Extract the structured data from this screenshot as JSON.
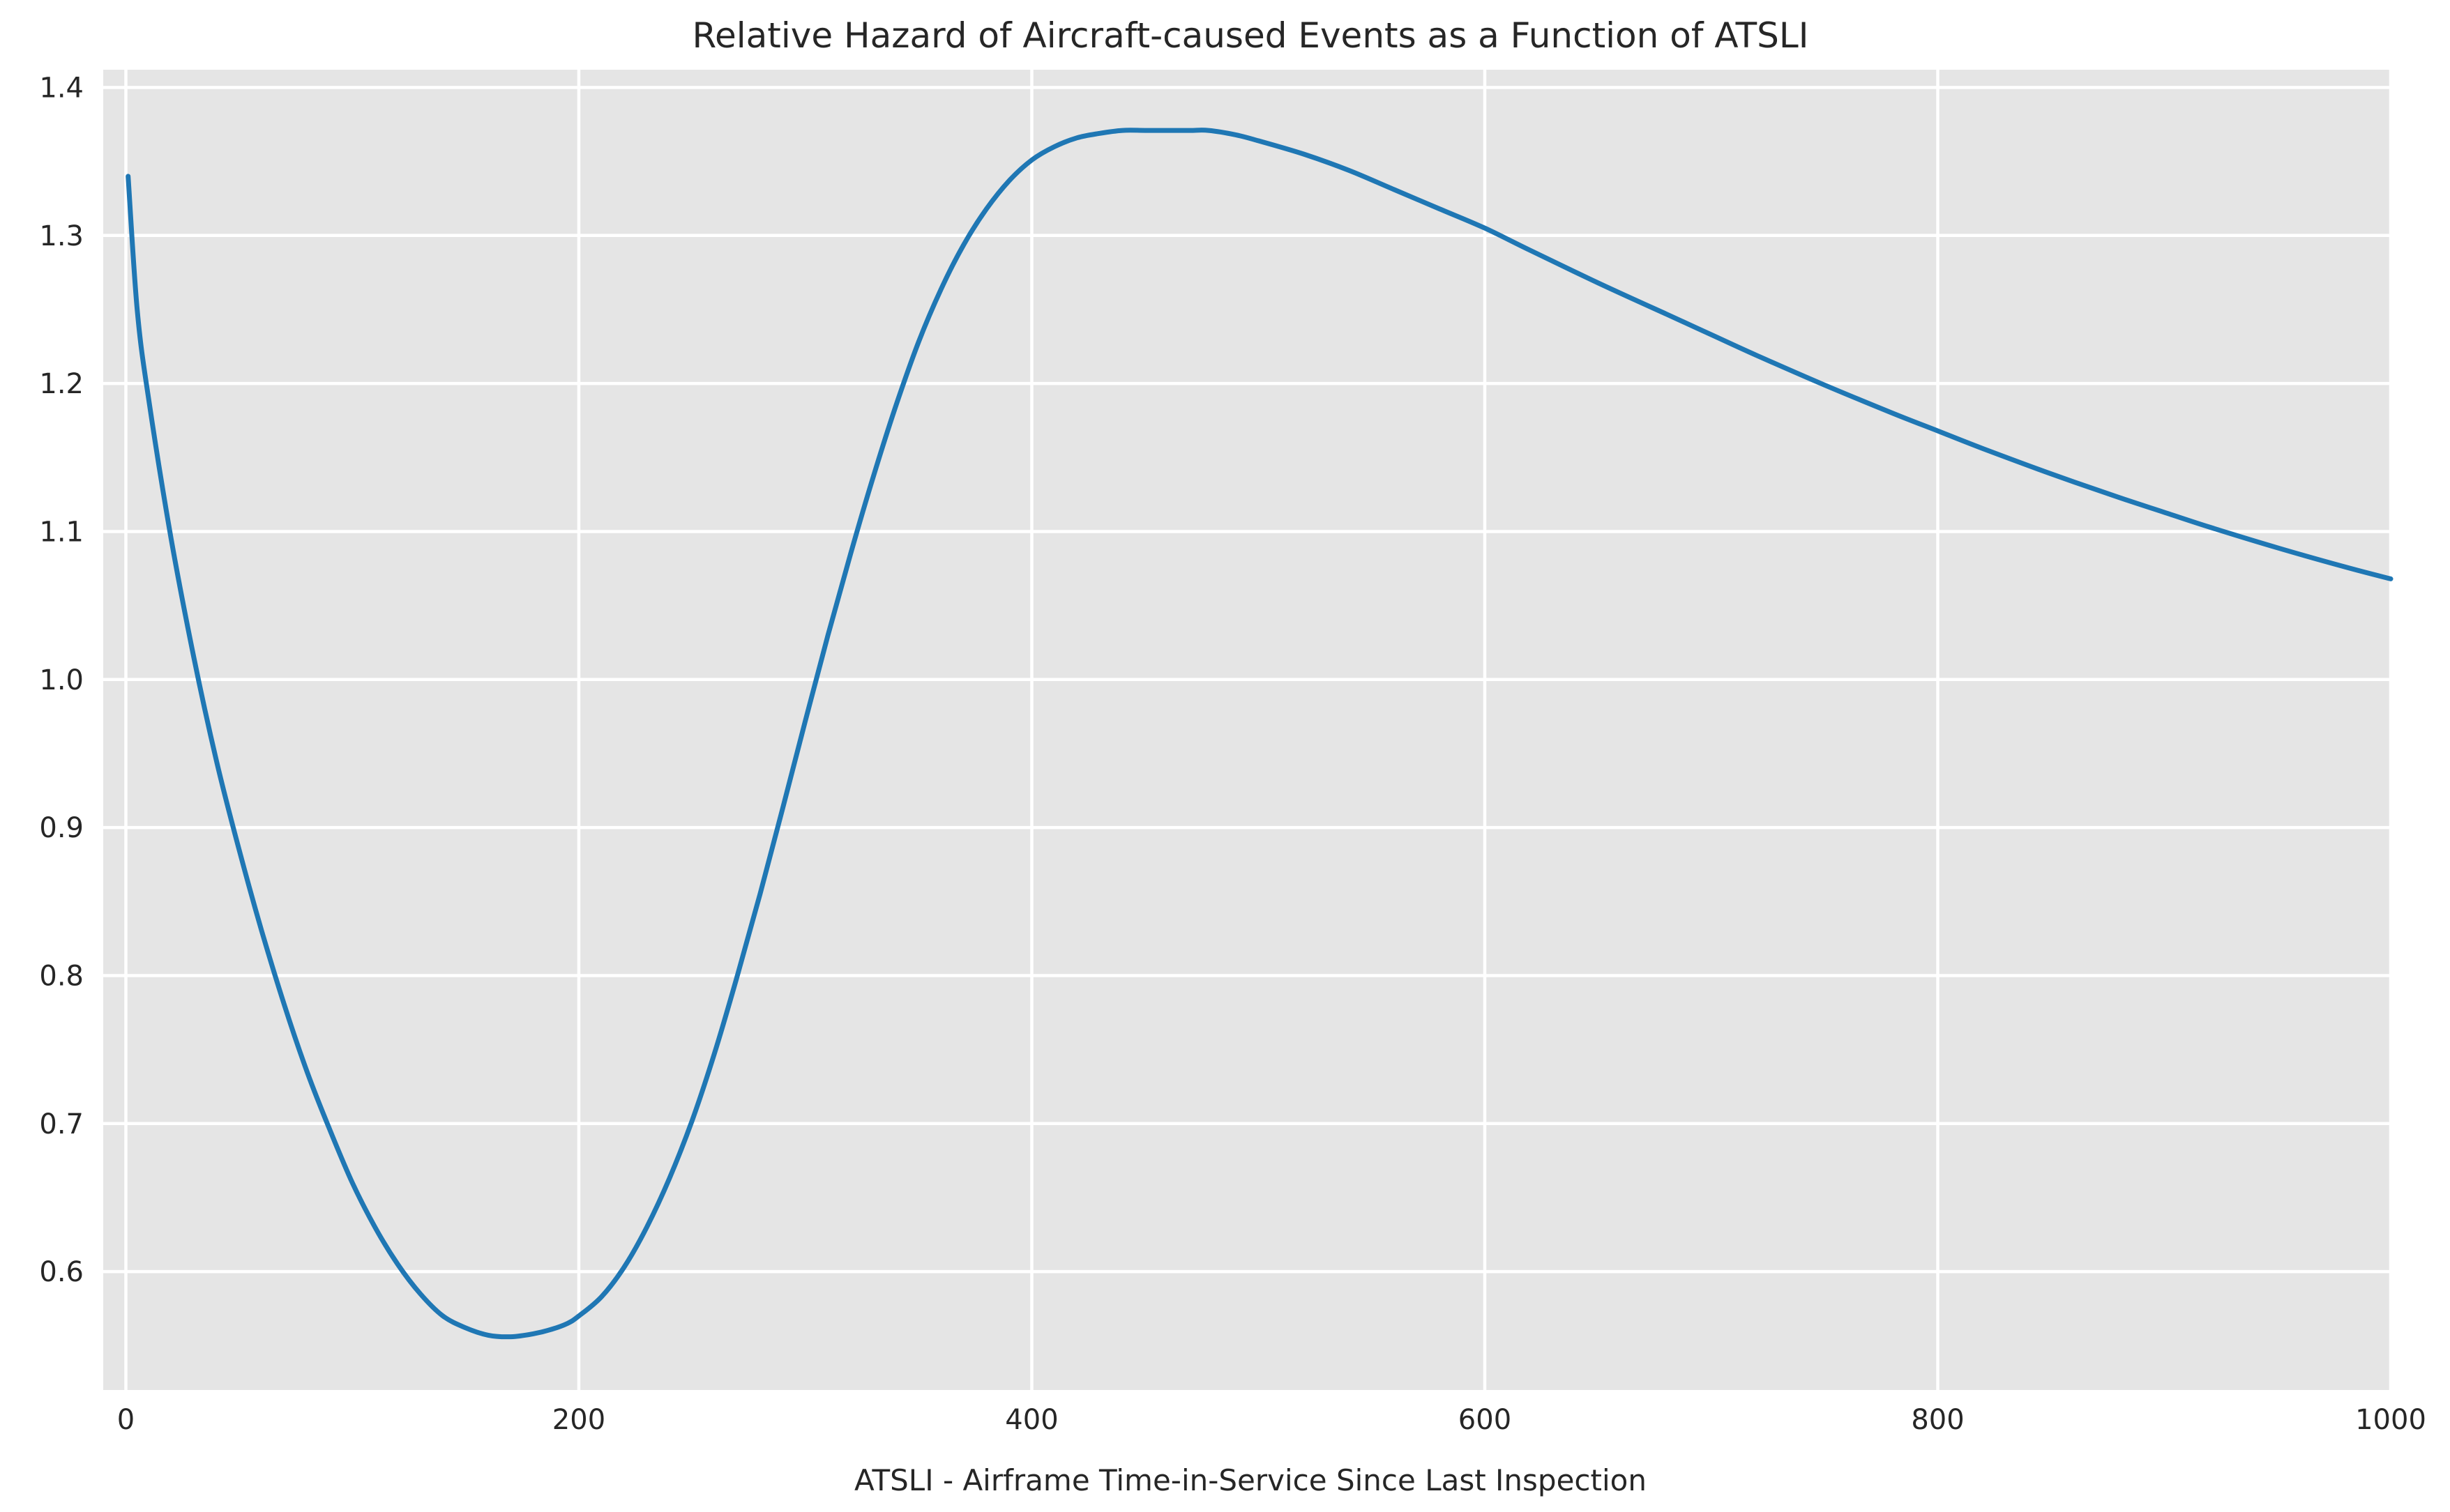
{
  "chart_data": {
    "type": "line",
    "title": "Relative Hazard of Aircraft-caused Events as a Function of ATSLI",
    "xlabel": "ATSLI - Airframe Time-in-Service Since Last Inspection",
    "ylabel": "",
    "xlim": [
      -10,
      1000
    ],
    "ylim": [
      0.52,
      1.412
    ],
    "grid": true,
    "legend": "none",
    "background_color": "#e5e5e5",
    "grid_color": "#ffffff",
    "line_color": "#1f77b4",
    "xticks": [
      0,
      200,
      400,
      600,
      800,
      1000
    ],
    "xtick_labels": [
      "0",
      "200",
      "400",
      "600",
      "800",
      "1000"
    ],
    "yticks": [
      0.6,
      0.7,
      0.8,
      0.9,
      1.0,
      1.1,
      1.2,
      1.3,
      1.4
    ],
    "ytick_labels": [
      "0.6",
      "0.7",
      "0.8",
      "0.9",
      "1.0",
      "1.1",
      "1.2",
      "1.3",
      "1.4"
    ],
    "series": [
      {
        "x": [
          1,
          5,
          10,
          20,
          30,
          40,
          50,
          60,
          70,
          80,
          90,
          100,
          110,
          120,
          130,
          140,
          150,
          160,
          170,
          180,
          188,
          195,
          200,
          210,
          220,
          230,
          240,
          250,
          260,
          270,
          280,
          290,
          300,
          310,
          320,
          330,
          340,
          350,
          360,
          370,
          380,
          390,
          400,
          410,
          420,
          430,
          440,
          450,
          460,
          470,
          478,
          490,
          500,
          520,
          540,
          560,
          580,
          600,
          620,
          650,
          680,
          700,
          720,
          750,
          780,
          800,
          820,
          850,
          880,
          900,
          920,
          950,
          980,
          1000
        ],
        "values": [
          1.34,
          1.25,
          1.19,
          1.095,
          1.015,
          0.945,
          0.885,
          0.83,
          0.78,
          0.735,
          0.696,
          0.66,
          0.63,
          0.605,
          0.585,
          0.57,
          0.562,
          0.557,
          0.556,
          0.558,
          0.561,
          0.565,
          0.57,
          0.583,
          0.603,
          0.63,
          0.663,
          0.702,
          0.748,
          0.8,
          0.855,
          0.913,
          0.972,
          1.03,
          1.085,
          1.137,
          1.185,
          1.228,
          1.264,
          1.294,
          1.318,
          1.337,
          1.351,
          1.36,
          1.366,
          1.369,
          1.371,
          1.371,
          1.371,
          1.371,
          1.371,
          1.368,
          1.364,
          1.355,
          1.344,
          1.331,
          1.318,
          1.305,
          1.29,
          1.268,
          1.247,
          1.233,
          1.219,
          1.199,
          1.18,
          1.168,
          1.156,
          1.139,
          1.123,
          1.113,
          1.103,
          1.089,
          1.076,
          1.068
        ]
      }
    ]
  }
}
